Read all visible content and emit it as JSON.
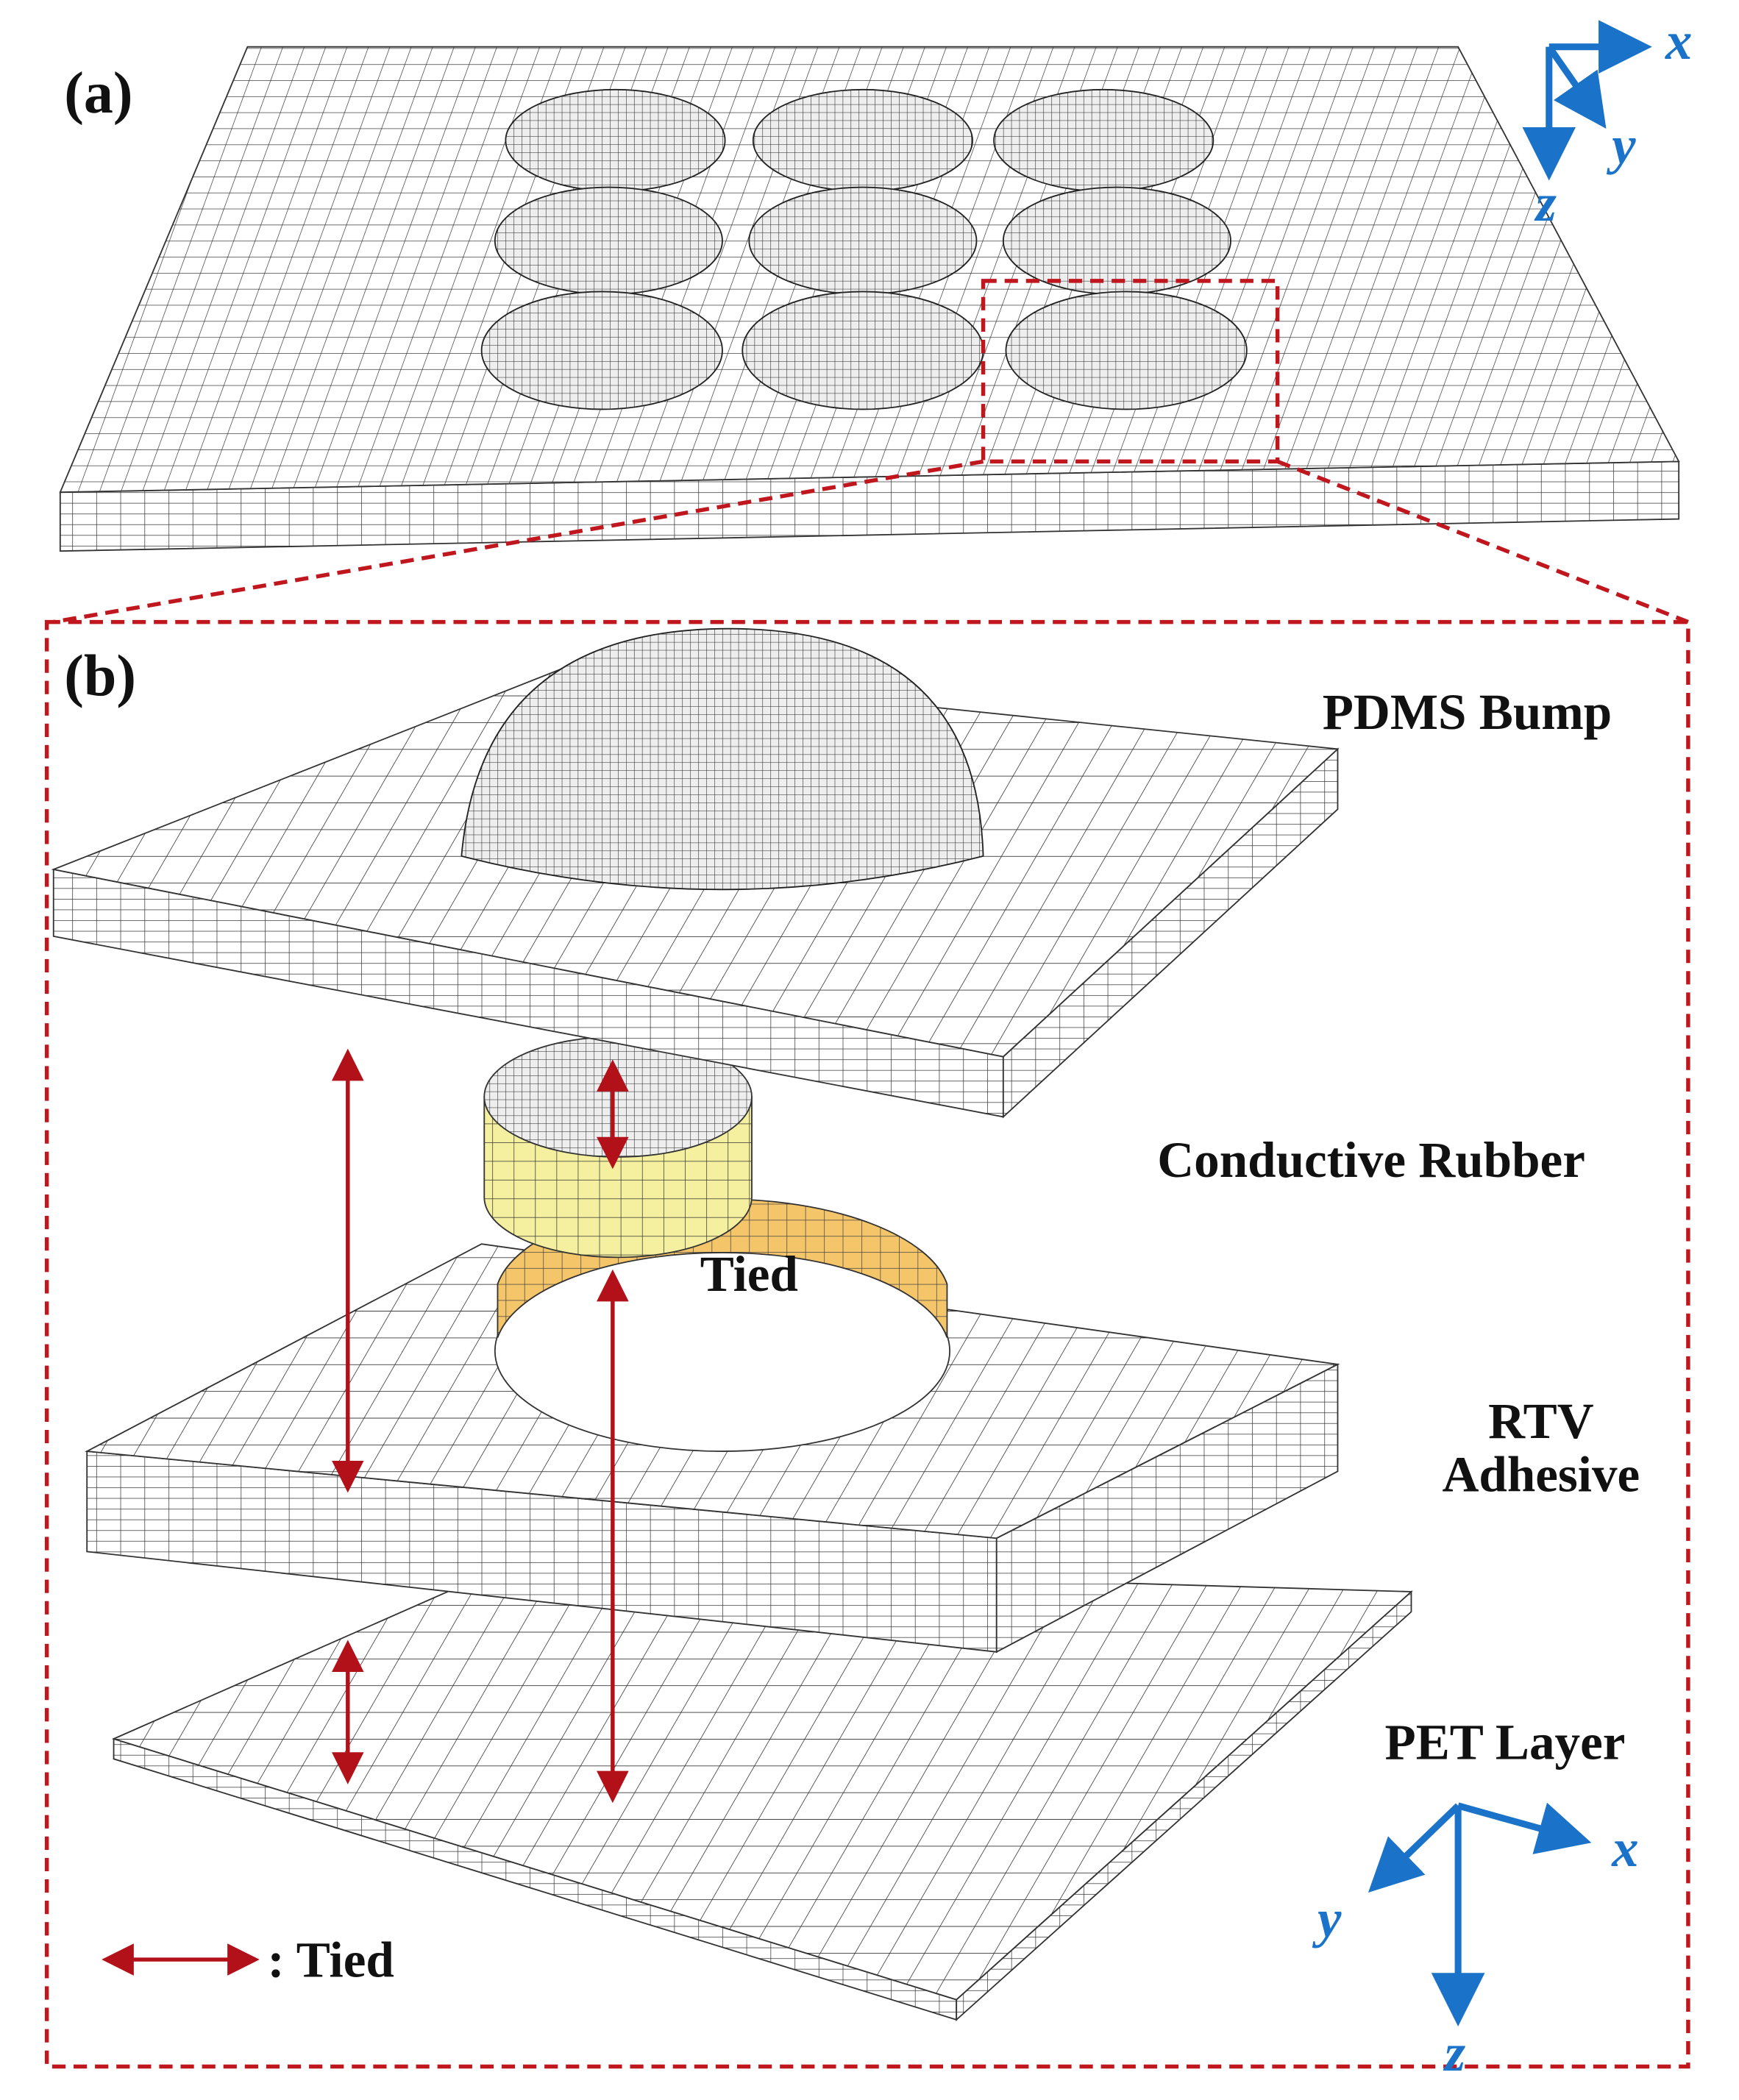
{
  "panel_a": {
    "label": "(a)",
    "axes": {
      "x": "x",
      "y": "y",
      "z": "z"
    }
  },
  "panel_b": {
    "label": "(b)",
    "layers": {
      "pdms": "PDMS Bump",
      "rubber": "Conductive Rubber",
      "rtv": [
        "RTV",
        "Adhesive"
      ],
      "pet": "PET Layer"
    },
    "tied_label": "Tied",
    "legend": ": Tied",
    "axes": {
      "x": "x",
      "y": "y",
      "z": "z"
    }
  }
}
